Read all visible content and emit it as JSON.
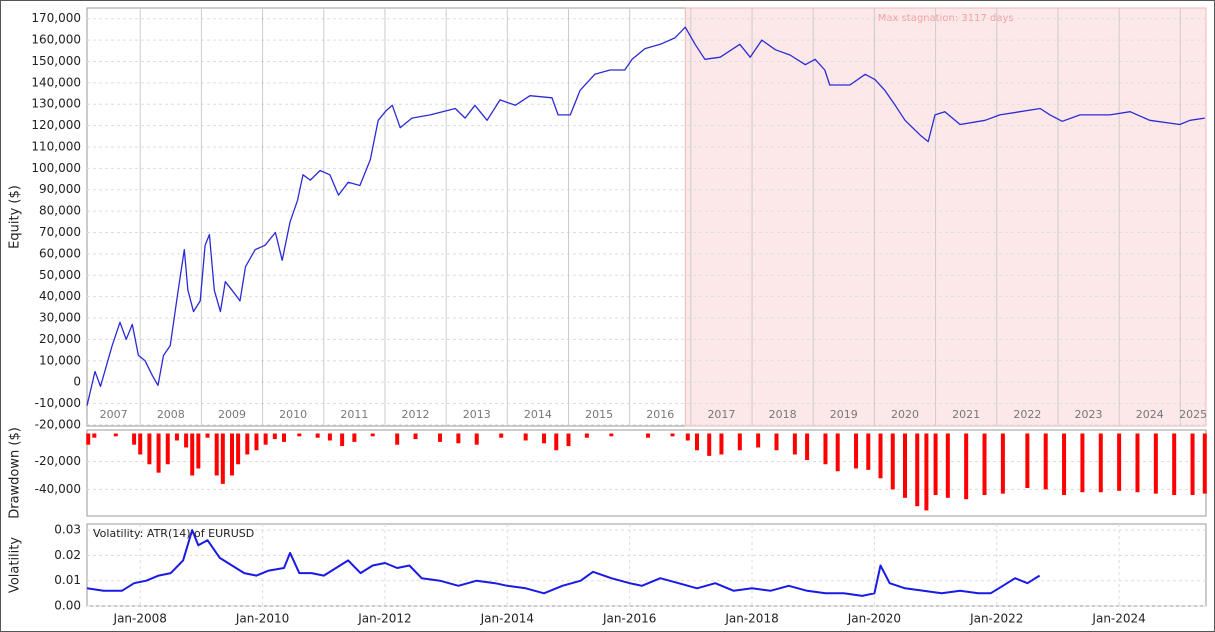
{
  "chart_data": [
    {
      "type": "line",
      "y_label": "Equity ($)",
      "color": "#2b2bd6",
      "grid": true,
      "xlim": [
        2007.13,
        2025.42
      ],
      "ylim": [
        -20500,
        175000
      ],
      "xticks": [
        2007,
        2008,
        2009,
        2010,
        2011,
        2012,
        2013,
        2014,
        2015,
        2016,
        2017,
        2018,
        2019,
        2020,
        2021,
        2022,
        2023,
        2024,
        2025
      ],
      "yticks": [
        {
          "value": -20000,
          "label": "-20,000"
        },
        {
          "value": -10000,
          "label": "-10,000"
        },
        0,
        {
          "value": 10000,
          "label": "10,000"
        },
        {
          "value": 20000,
          "label": "20,000"
        },
        {
          "value": 30000,
          "label": "30,000"
        },
        {
          "value": 40000,
          "label": "40,000"
        },
        {
          "value": 50000,
          "label": "50,000"
        },
        {
          "value": 60000,
          "label": "60,000"
        },
        {
          "value": 70000,
          "label": "70,000"
        },
        {
          "value": 80000,
          "label": "80,000"
        },
        {
          "value": 90000,
          "label": "90,000"
        },
        {
          "value": 100000,
          "label": "100,000"
        },
        {
          "value": 110000,
          "label": "110,000"
        },
        {
          "value": 120000,
          "label": "120,000"
        },
        {
          "value": 130000,
          "label": "130,000"
        },
        {
          "value": 140000,
          "label": "140,000"
        },
        {
          "value": 150000,
          "label": "150,000"
        },
        {
          "value": 160000,
          "label": "160,000"
        },
        {
          "value": 170000,
          "label": "170,000"
        }
      ],
      "highlight": {
        "x": [
          2016.91,
          2025.42
        ],
        "label": "Max stagnation: 3117 days",
        "color": "#fce8e8"
      },
      "x": [
        2007.13,
        2007.26,
        2007.35,
        2007.54,
        2007.67,
        2007.77,
        2007.87,
        2007.97,
        2008.08,
        2008.2,
        2008.29,
        2008.38,
        2008.49,
        2008.62,
        2008.72,
        2008.78,
        2008.87,
        2008.98,
        2009.06,
        2009.13,
        2009.21,
        2009.31,
        2009.39,
        2009.5,
        2009.63,
        2009.72,
        2009.88,
        2010.04,
        2010.21,
        2010.32,
        2010.45,
        2010.57,
        2010.66,
        2010.78,
        2010.94,
        2011.1,
        2011.24,
        2011.4,
        2011.59,
        2011.76,
        2011.89,
        2012.02,
        2012.12,
        2012.25,
        2012.44,
        2012.74,
        2013.15,
        2013.31,
        2013.47,
        2013.67,
        2013.88,
        2014.13,
        2014.37,
        2014.73,
        2014.83,
        2015.03,
        2015.19,
        2015.43,
        2015.68,
        2015.92,
        2016.04,
        2016.25,
        2016.5,
        2016.74,
        2016.91,
        2017.07,
        2017.23,
        2017.48,
        2017.8,
        2017.97,
        2018.16,
        2018.38,
        2018.62,
        2018.87,
        2019.03,
        2019.19,
        2019.27,
        2019.6,
        2019.85,
        2020.01,
        2020.17,
        2020.34,
        2020.5,
        2020.75,
        2020.88,
        2020.99,
        2021.15,
        2021.4,
        2021.81,
        2022.05,
        2022.71,
        2022.87,
        2023.07,
        2023.36,
        2023.85,
        2024.18,
        2024.5,
        2024.99,
        2025.16,
        2025.4
      ],
      "values": [
        -11000,
        5000,
        -2000,
        17000,
        28000,
        20000,
        27000,
        12500,
        10000,
        3000,
        -1500,
        12500,
        17000,
        43000,
        62000,
        43000,
        33000,
        38000,
        64000,
        69000,
        43000,
        33000,
        47000,
        43000,
        38000,
        54000,
        62000,
        64000,
        70000,
        57000,
        75000,
        85000,
        97000,
        94500,
        99000,
        97000,
        87500,
        93500,
        92000,
        104000,
        122500,
        127000,
        129500,
        119000,
        123500,
        125000,
        128000,
        123500,
        129500,
        122500,
        132000,
        129500,
        134000,
        133000,
        125000,
        125000,
        136500,
        144000,
        146000,
        146000,
        151000,
        156000,
        158000,
        161000,
        166000,
        158000,
        151000,
        152000,
        158000,
        152000,
        160000,
        155500,
        153000,
        148500,
        151000,
        146000,
        139000,
        139000,
        144000,
        141500,
        136500,
        129500,
        122500,
        115500,
        112500,
        125000,
        126500,
        120500,
        122500,
        125000,
        128000,
        125000,
        122000,
        125000,
        125000,
        126500,
        122500,
        120500,
        122500,
        123500
      ]
    },
    {
      "type": "bar",
      "y_label": "Drawdown ($)",
      "color": "#ff0000",
      "grid": true,
      "xlim": [
        2007.13,
        2025.42
      ],
      "ylim": [
        -59000,
        2500
      ],
      "yticks": [
        {
          "value": -40000,
          "label": "-40,000"
        },
        {
          "value": -20000,
          "label": "-20,000"
        }
      ],
      "x": [
        2007.15,
        2007.25,
        2007.6,
        2007.9,
        2008.0,
        2008.15,
        2008.3,
        2008.45,
        2008.6,
        2008.75,
        2008.85,
        2008.95,
        2009.1,
        2009.25,
        2009.35,
        2009.5,
        2009.6,
        2009.75,
        2009.9,
        2010.05,
        2010.2,
        2010.35,
        2010.6,
        2010.9,
        2011.1,
        2011.3,
        2011.5,
        2011.8,
        2012.2,
        2012.5,
        2012.9,
        2013.2,
        2013.5,
        2013.9,
        2014.3,
        2014.6,
        2014.8,
        2015.0,
        2015.3,
        2015.7,
        2016.3,
        2016.7,
        2016.95,
        2017.1,
        2017.3,
        2017.5,
        2017.8,
        2018.1,
        2018.4,
        2018.7,
        2018.9,
        2019.2,
        2019.4,
        2019.7,
        2019.9,
        2020.1,
        2020.3,
        2020.5,
        2020.7,
        2020.85,
        2021.0,
        2021.2,
        2021.5,
        2021.8,
        2022.1,
        2022.5,
        2022.8,
        2023.1,
        2023.4,
        2023.7,
        2024.0,
        2024.3,
        2024.6,
        2024.9,
        2025.2,
        2025.4
      ],
      "values": [
        -8000,
        -3000,
        -2000,
        -8000,
        -15000,
        -22000,
        -28000,
        -22000,
        -5000,
        -10000,
        -30000,
        -25000,
        -3000,
        -30000,
        -36000,
        -30000,
        -22000,
        -15000,
        -12000,
        -8000,
        -4000,
        -6000,
        -2000,
        -3000,
        -5000,
        -9000,
        -6000,
        -2000,
        -8000,
        -4000,
        -6000,
        -7000,
        -8000,
        -3000,
        -5000,
        -7000,
        -12000,
        -9000,
        -3000,
        -2000,
        -3000,
        -2000,
        -5000,
        -12000,
        -16000,
        -15000,
        -12000,
        -10000,
        -12000,
        -15000,
        -19000,
        -22000,
        -27000,
        -25000,
        -26000,
        -32000,
        -40000,
        -46000,
        -52000,
        -55000,
        -44000,
        -46000,
        -47000,
        -44000,
        -43000,
        -39000,
        -40000,
        -44000,
        -42000,
        -42000,
        -41000,
        -42000,
        -43000,
        -44000,
        -44000,
        -43000
      ]
    },
    {
      "type": "line",
      "y_label": "Volatility",
      "grid": true,
      "xlim": [
        2007.13,
        2025.42
      ],
      "ylim": [
        0,
        0.0324
      ],
      "yticks": [
        {
          "value": 0,
          "label": "0.00"
        },
        {
          "value": 0.01,
          "label": "0.01"
        },
        {
          "value": 0.02,
          "label": "0.02"
        },
        {
          "value": 0.03,
          "label": "0.03"
        }
      ],
      "xticks": [
        {
          "value": 2008,
          "label": "Jan-2008"
        },
        {
          "value": 2010,
          "label": "Jan-2010"
        },
        {
          "value": 2012,
          "label": "Jan-2012"
        },
        {
          "value": 2014,
          "label": "Jan-2014"
        },
        {
          "value": 2016,
          "label": "Jan-2016"
        },
        {
          "value": 2018,
          "label": "Jan-2018"
        },
        {
          "value": 2020,
          "label": "Jan-2020"
        },
        {
          "value": 2022,
          "label": "Jan-2022"
        },
        {
          "value": 2024,
          "label": "Jan-2024"
        }
      ],
      "x": [
        2007.13,
        2007.4,
        2007.7,
        2007.9,
        2008.1,
        2008.3,
        2008.5,
        2008.7,
        2008.85,
        2008.95,
        2009.1,
        2009.3,
        2009.5,
        2009.7,
        2009.9,
        2010.1,
        2010.35,
        2010.45,
        2010.6,
        2010.8,
        2011.0,
        2011.2,
        2011.4,
        2011.6,
        2011.8,
        2012.0,
        2012.2,
        2012.4,
        2012.6,
        2012.9,
        2013.2,
        2013.5,
        2013.8,
        2014.0,
        2014.3,
        2014.6,
        2014.9,
        2015.2,
        2015.4,
        2015.7,
        2016.0,
        2016.2,
        2016.5,
        2016.8,
        2017.1,
        2017.4,
        2017.7,
        2018.0,
        2018.3,
        2018.6,
        2018.9,
        2019.2,
        2019.5,
        2019.8,
        2020.0,
        2020.1,
        2020.25,
        2020.5,
        2020.8,
        2021.1,
        2021.4,
        2021.7,
        2021.9,
        2022.1,
        2022.3,
        2022.5,
        2022.7
      ],
      "series": [
        {
          "name": "Volatility: ATR(14) of EURUSD",
          "color": "#1a1ae6",
          "values": [
            0.007,
            0.006,
            0.006,
            0.009,
            0.01,
            0.012,
            0.013,
            0.018,
            0.03,
            0.024,
            0.026,
            0.019,
            0.016,
            0.013,
            0.012,
            0.014,
            0.015,
            0.021,
            0.013,
            0.013,
            0.012,
            0.015,
            0.018,
            0.013,
            0.016,
            0.017,
            0.015,
            0.016,
            0.011,
            0.01,
            0.008,
            0.01,
            0.009,
            0.008,
            0.007,
            0.005,
            0.008,
            0.01,
            0.0135,
            0.011,
            0.009,
            0.008,
            0.011,
            0.009,
            0.007,
            0.009,
            0.006,
            0.007,
            0.006,
            0.008,
            0.006,
            0.005,
            0.005,
            0.004,
            0.005,
            0.016,
            0.009,
            0.007,
            0.006,
            0.005,
            0.006,
            0.005,
            0.005,
            0.008,
            0.011,
            0.009,
            0.012
          ]
        }
      ]
    }
  ]
}
